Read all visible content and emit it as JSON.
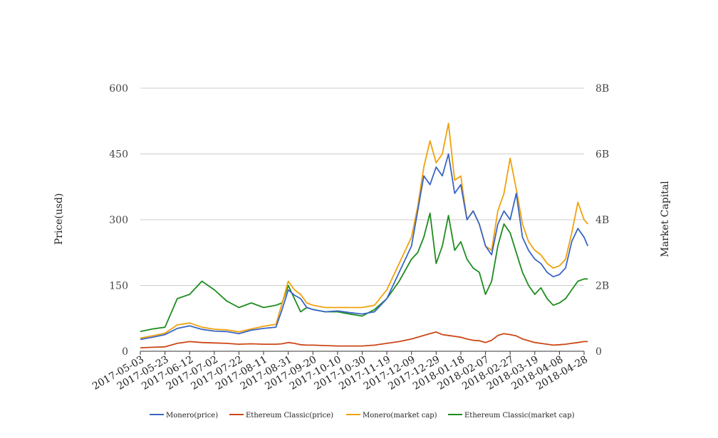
{
  "chart_data": {
    "type": "line",
    "title": "",
    "ylabel": "Price(usd)",
    "y2label": "Market Capital",
    "ylim": [
      0,
      600
    ],
    "y2lim": [
      0,
      8000000000
    ],
    "yticks": [
      "0",
      "150",
      "300",
      "450",
      "600"
    ],
    "y2ticks": [
      "0",
      "2B",
      "4B",
      "6B",
      "8B"
    ],
    "grid": true,
    "legend_position": "bottom",
    "colors": {
      "Monero(price)": "#3a66c4",
      "Ethereum Classic(price)": "#cc4716",
      "Monero(market cap)": "#f0a10c",
      "Ethereum Classic(market cap)": "#1e8c1e"
    },
    "x_tick_labels": [
      "2017-05-03",
      "2017-05-23",
      "2017-06-12",
      "2017-07-02",
      "2017-07-22",
      "2017-08-11",
      "2017-08-31",
      "2017-09-20",
      "2017-10-10",
      "2017-10-30",
      "2017-11-19",
      "2017-12-09",
      "2017-12-29",
      "2018-01-18",
      "2018-02-07",
      "2018-02-27",
      "2018-03-19",
      "2018-04-08",
      "2018-04-28"
    ],
    "x": [
      "2017-05-03",
      "2017-05-13",
      "2017-05-23",
      "2017-06-02",
      "2017-06-12",
      "2017-06-22",
      "2017-07-02",
      "2017-07-12",
      "2017-07-22",
      "2017-08-01",
      "2017-08-11",
      "2017-08-21",
      "2017-08-26",
      "2017-08-31",
      "2017-09-05",
      "2017-09-10",
      "2017-09-15",
      "2017-09-20",
      "2017-09-30",
      "2017-10-10",
      "2017-10-20",
      "2017-10-30",
      "2017-11-09",
      "2017-11-19",
      "2017-11-29",
      "2017-12-09",
      "2017-12-14",
      "2017-12-19",
      "2017-12-24",
      "2017-12-29",
      "2018-01-03",
      "2018-01-08",
      "2018-01-13",
      "2018-01-18",
      "2018-01-23",
      "2018-01-28",
      "2018-02-02",
      "2018-02-07",
      "2018-02-12",
      "2018-02-17",
      "2018-02-22",
      "2018-02-27",
      "2018-03-04",
      "2018-03-09",
      "2018-03-14",
      "2018-03-19",
      "2018-03-24",
      "2018-03-29",
      "2018-04-03",
      "2018-04-08",
      "2018-04-13",
      "2018-04-18",
      "2018-04-23",
      "2018-04-28",
      "2018-05-01"
    ],
    "series": [
      {
        "name": "Monero(price)",
        "axis": "left",
        "values": [
          27,
          32,
          38,
          52,
          58,
          50,
          46,
          45,
          40,
          48,
          52,
          55,
          95,
          140,
          128,
          120,
          100,
          95,
          90,
          92,
          88,
          85,
          90,
          120,
          180,
          240,
          320,
          400,
          380,
          420,
          400,
          450,
          360,
          380,
          300,
          320,
          290,
          240,
          220,
          290,
          320,
          300,
          360,
          260,
          230,
          210,
          200,
          180,
          170,
          175,
          190,
          250,
          280,
          260,
          240
        ]
      },
      {
        "name": "Ethereum Classic(price)",
        "axis": "left",
        "values": [
          8,
          9,
          10,
          18,
          22,
          20,
          19,
          18,
          16,
          17,
          16,
          16,
          17,
          20,
          18,
          15,
          14,
          14,
          13,
          12,
          12,
          12,
          14,
          18,
          22,
          28,
          32,
          36,
          40,
          44,
          38,
          36,
          34,
          32,
          28,
          25,
          24,
          20,
          25,
          36,
          40,
          38,
          35,
          28,
          24,
          20,
          18,
          16,
          14,
          15,
          16,
          18,
          20,
          22,
          22
        ]
      },
      {
        "name": "Monero(market cap)",
        "axis": "right",
        "values": [
          400000000,
          470000000,
          550000000,
          800000000,
          860000000,
          730000000,
          670000000,
          650000000,
          590000000,
          680000000,
          760000000,
          820000000,
          1450000000,
          2130000000,
          1870000000,
          1730000000,
          1470000000,
          1400000000,
          1330000000,
          1330000000,
          1330000000,
          1330000000,
          1400000000,
          1870000000,
          2670000000,
          3470000000,
          4400000000,
          5600000000,
          6400000000,
          5730000000,
          6000000000,
          6930000000,
          5200000000,
          5330000000,
          4000000000,
          4270000000,
          3870000000,
          3200000000,
          3070000000,
          4270000000,
          4800000000,
          5870000000,
          4930000000,
          3870000000,
          3330000000,
          3070000000,
          2930000000,
          2670000000,
          2530000000,
          2600000000,
          2800000000,
          3600000000,
          4530000000,
          4000000000,
          3870000000
        ]
      },
      {
        "name": "Ethereum Classic(market cap)",
        "axis": "right",
        "values": [
          600000000,
          680000000,
          730000000,
          1600000000,
          1730000000,
          2130000000,
          1870000000,
          1530000000,
          1330000000,
          1470000000,
          1330000000,
          1400000000,
          1470000000,
          2000000000,
          1600000000,
          1200000000,
          1330000000,
          1270000000,
          1200000000,
          1200000000,
          1130000000,
          1070000000,
          1270000000,
          1600000000,
          2130000000,
          2800000000,
          3000000000,
          3470000000,
          4200000000,
          2670000000,
          3200000000,
          4130000000,
          3070000000,
          3330000000,
          2800000000,
          2530000000,
          2400000000,
          1730000000,
          2130000000,
          3200000000,
          3870000000,
          3600000000,
          3000000000,
          2400000000,
          2000000000,
          1730000000,
          1930000000,
          1600000000,
          1400000000,
          1470000000,
          1600000000,
          1870000000,
          2130000000,
          2200000000,
          2200000000
        ]
      }
    ]
  }
}
